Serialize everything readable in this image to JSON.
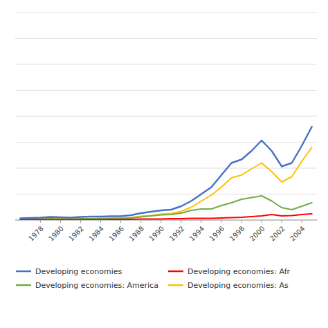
{
  "chart_data": {
    "type": "line",
    "x": [
      1976,
      1977,
      1978,
      1979,
      1980,
      1981,
      1982,
      1983,
      1984,
      1985,
      1986,
      1987,
      1988,
      1989,
      1990,
      1991,
      1992,
      1993,
      1994,
      1995,
      1996,
      1997,
      1998,
      1999,
      2000,
      2001,
      2002,
      2003,
      2004,
      2005
    ],
    "series": [
      {
        "name": "Developing economies",
        "color": "#4472C4",
        "values": [
          5,
          6,
          7,
          9,
          8,
          7,
          9,
          10,
          10,
          11,
          11,
          14,
          20,
          24,
          28,
          30,
          40,
          55,
          75,
          95,
          130,
          165,
          175,
          200,
          230,
          200,
          155,
          165,
          215,
          270
        ]
      },
      {
        "name": "Developing economies: Afr",
        "color": "#FF0000",
        "values": [
          1,
          1,
          1,
          1,
          1,
          1,
          1,
          1,
          1,
          2,
          2,
          2,
          3,
          3,
          3,
          4,
          4,
          5,
          5,
          5,
          6,
          7,
          8,
          10,
          12,
          16,
          12,
          13,
          16,
          18
        ]
      },
      {
        "name": "Developing economies: America",
        "color": "#70AD47",
        "values": [
          2,
          2,
          3,
          4,
          3,
          3,
          4,
          4,
          4,
          5,
          5,
          6,
          9,
          12,
          15,
          16,
          20,
          28,
          32,
          32,
          42,
          50,
          60,
          65,
          70,
          55,
          36,
          30,
          40,
          50
        ]
      },
      {
        "name": "Developing economies: As",
        "color": "#FFC000",
        "values": [
          2,
          2,
          3,
          4,
          4,
          3,
          4,
          4,
          5,
          5,
          5,
          7,
          11,
          13,
          17,
          19,
          25,
          37,
          55,
          72,
          95,
          122,
          130,
          148,
          165,
          140,
          110,
          125,
          170,
          210
        ]
      }
    ],
    "xlim": [
      1975.5,
      2005.5
    ],
    "xticks": [
      1978,
      1980,
      1982,
      1984,
      1986,
      1988,
      1990,
      1992,
      1994,
      1996,
      1998,
      2000,
      2002,
      2004
    ],
    "ylim": [
      0,
      600
    ],
    "yticks": [
      0,
      75,
      150,
      225,
      300,
      375,
      450,
      525,
      600
    ],
    "grid": true,
    "tick_labels": "x"
  }
}
